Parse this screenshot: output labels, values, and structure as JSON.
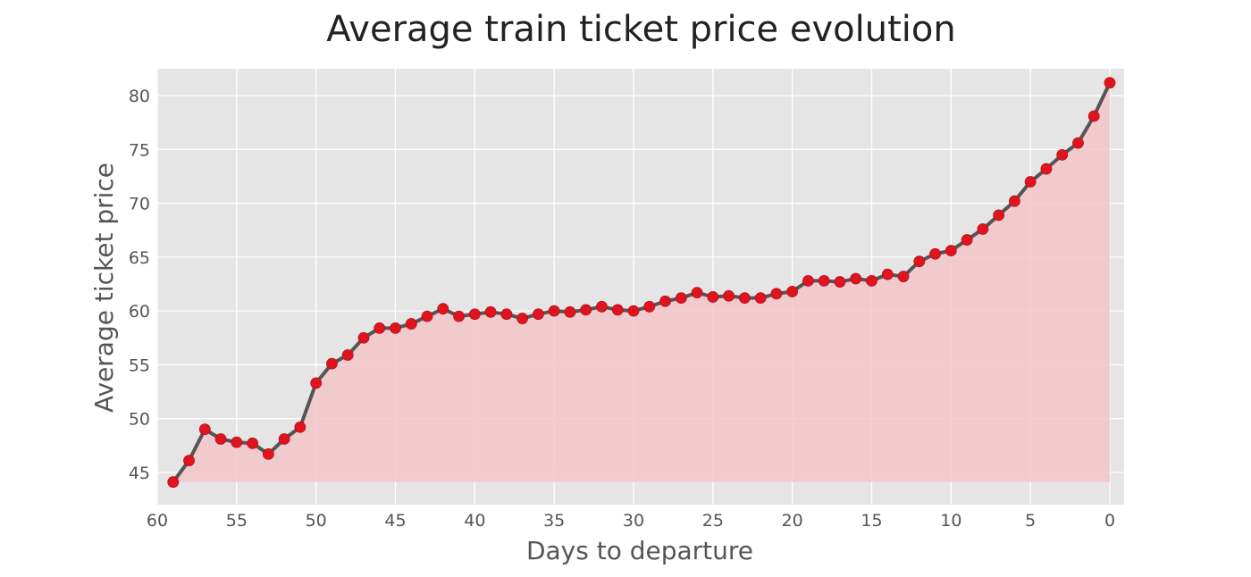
{
  "chart_data": {
    "type": "line",
    "title": "Average train ticket price evolution",
    "xlabel": "Days to departure",
    "ylabel": "Average ticket price",
    "xlim": [
      60,
      0
    ],
    "ylim": [
      42,
      82.5
    ],
    "x_reversed": true,
    "x_ticks": [
      60,
      55,
      50,
      45,
      40,
      35,
      30,
      25,
      20,
      15,
      10,
      5,
      0
    ],
    "y_ticks": [
      45,
      50,
      55,
      60,
      65,
      70,
      75,
      80
    ],
    "grid": true,
    "fill_area": true,
    "series": [
      {
        "x": [
          59,
          58,
          57,
          56,
          55,
          54,
          53,
          52,
          51,
          50,
          49,
          48,
          47,
          46,
          45,
          44,
          43,
          42,
          41,
          40,
          39,
          38,
          37,
          36,
          35,
          34,
          33,
          32,
          31,
          30,
          29,
          28,
          27,
          26,
          25,
          24,
          23,
          22,
          21,
          20,
          19,
          18,
          17,
          16,
          15,
          14,
          13,
          12,
          11,
          10,
          9,
          8,
          7,
          6,
          5,
          4,
          3,
          2,
          1,
          0
        ],
        "values": [
          44.1,
          46.1,
          49.0,
          48.1,
          47.8,
          47.7,
          46.7,
          48.1,
          49.2,
          53.3,
          55.1,
          55.9,
          57.5,
          58.4,
          58.4,
          58.8,
          59.5,
          60.2,
          59.5,
          59.7,
          59.9,
          59.7,
          59.3,
          59.7,
          60.0,
          59.9,
          60.1,
          60.4,
          60.1,
          60.0,
          60.4,
          60.9,
          61.2,
          61.7,
          61.3,
          61.4,
          61.2,
          61.2,
          61.6,
          61.8,
          62.8,
          62.8,
          62.7,
          63.0,
          62.8,
          63.4,
          63.2,
          64.6,
          65.3,
          65.6,
          66.6,
          67.6,
          68.9,
          70.2,
          72.0,
          73.2,
          74.5,
          75.6,
          78.1,
          81.2
        ]
      }
    ],
    "colors": {
      "line": "#555555",
      "marker": "#e0141e",
      "fill": "#f3c6ca",
      "plot_bg": "#e5e5e5",
      "grid": "#ffffff"
    }
  }
}
